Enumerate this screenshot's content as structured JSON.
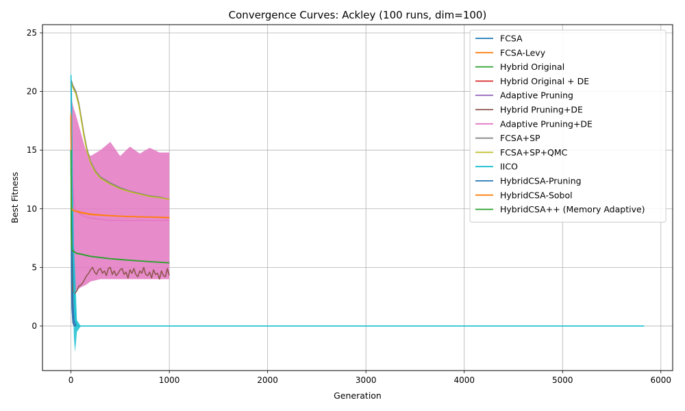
{
  "chart_data": {
    "type": "line",
    "title": "Convergence Curves: Ackley (100 runs, dim=100)",
    "xlabel": "Generation",
    "ylabel": "Best Fitness",
    "xlim": [
      -290,
      6120
    ],
    "ylim": [
      -3.8,
      25.7
    ],
    "xticks": [
      0,
      1000,
      2000,
      3000,
      4000,
      5000,
      6000
    ],
    "yticks": [
      0,
      5,
      10,
      15,
      20,
      25
    ],
    "grid": true,
    "legend_position": "top-right",
    "series": [
      {
        "name": "FCSA",
        "color": "#1f77b4",
        "x": [
          0,
          3,
          6,
          10,
          15,
          20,
          30,
          50
        ],
        "y": [
          21.0,
          18.0,
          14.0,
          9.0,
          5.0,
          2.0,
          0.5,
          0.0
        ],
        "band": []
      },
      {
        "name": "FCSA-Levy",
        "color": "#ff7f0e",
        "x": [
          0,
          2,
          5,
          10,
          20,
          40,
          60,
          100,
          200,
          300,
          400,
          500,
          600,
          700,
          800,
          900,
          1000
        ],
        "y": [
          18.3,
          12.0,
          10.3,
          10.0,
          9.9,
          9.85,
          9.8,
          9.7,
          9.55,
          9.48,
          9.42,
          9.38,
          9.35,
          9.32,
          9.3,
          9.28,
          9.25
        ],
        "band": []
      },
      {
        "name": "Hybrid Original",
        "color": "#2ca02c",
        "x": [
          0,
          2,
          5,
          10,
          20,
          40,
          60,
          100,
          150,
          200,
          300,
          400,
          500,
          600,
          700,
          800,
          900,
          1000
        ],
        "y": [
          15.0,
          9.0,
          7.0,
          6.6,
          6.45,
          6.3,
          6.2,
          6.15,
          6.05,
          5.95,
          5.85,
          5.75,
          5.68,
          5.62,
          5.56,
          5.5,
          5.45,
          5.4
        ],
        "band": []
      },
      {
        "name": "Hybrid Original + DE",
        "color": "#d62728",
        "x": [
          0,
          5,
          10,
          15,
          20,
          30,
          50
        ],
        "y": [
          18.0,
          8.0,
          3.0,
          1.0,
          0.3,
          0.05,
          0.0
        ],
        "band": []
      },
      {
        "name": "Adaptive Pruning",
        "color": "#9467bd",
        "x": [
          0,
          5,
          10,
          20,
          30,
          50
        ],
        "y": [
          17.0,
          6.0,
          2.0,
          0.5,
          0.1,
          0.0
        ],
        "band": []
      },
      {
        "name": "Hybrid Pruning+DE",
        "color": "#8c564b",
        "x": [
          0,
          5,
          10,
          20,
          40,
          60,
          80,
          100,
          120,
          140,
          160,
          180,
          200,
          220,
          240,
          260,
          280,
          300,
          320,
          340,
          360,
          380,
          400,
          420,
          440,
          460,
          480,
          500,
          520,
          540,
          560,
          580,
          600,
          620,
          640,
          660,
          680,
          700,
          720,
          740,
          760,
          780,
          800,
          820,
          840,
          860,
          880,
          900,
          920,
          940,
          960,
          980,
          1000
        ],
        "y": [
          18.0,
          8.0,
          4.0,
          3.0,
          2.8,
          3.0,
          3.4,
          3.5,
          3.7,
          4.0,
          4.3,
          4.5,
          4.8,
          5.0,
          4.6,
          4.4,
          4.8,
          4.9,
          4.5,
          4.7,
          4.3,
          4.9,
          5.0,
          4.4,
          4.7,
          4.3,
          4.5,
          4.8,
          4.9,
          4.4,
          4.6,
          4.1,
          4.8,
          4.5,
          4.9,
          4.4,
          4.2,
          4.7,
          4.5,
          5.0,
          4.4,
          4.3,
          4.6,
          4.1,
          4.8,
          4.4,
          4.5,
          4.0,
          4.7,
          4.3,
          4.2,
          4.9,
          4.3
        ],
        "band": []
      },
      {
        "name": "Adaptive Pruning+DE",
        "color": "#e377c2",
        "x": [
          0,
          10,
          20,
          30,
          50,
          100,
          150,
          200,
          300,
          400,
          500,
          600,
          700,
          800,
          900,
          1000
        ],
        "y": [
          18.0,
          14.0,
          12.0,
          10.5,
          9.8,
          9.5,
          9.3,
          9.2,
          9.1,
          9.0,
          9.0,
          9.0,
          9.0,
          9.0,
          9.0,
          9.0
        ],
        "band": [
          [
            17.5,
            19.5
          ],
          [
            3.0,
            19.2
          ],
          [
            2.8,
            18.8
          ],
          [
            3.0,
            18.5
          ],
          [
            3.0,
            18.0
          ],
          [
            3.3,
            16.5
          ],
          [
            3.5,
            15.0
          ],
          [
            3.8,
            14.5
          ],
          [
            4.0,
            15.0
          ],
          [
            4.0,
            15.7
          ],
          [
            4.0,
            14.5
          ],
          [
            4.0,
            15.3
          ],
          [
            4.0,
            14.7
          ],
          [
            4.0,
            15.2
          ],
          [
            4.0,
            14.8
          ],
          [
            4.0,
            14.8
          ]
        ]
      },
      {
        "name": "FCSA+SP",
        "color": "#7f7f7f",
        "x": [
          0,
          20,
          50,
          80,
          100,
          130,
          160,
          200,
          250,
          300,
          400,
          500,
          600,
          700,
          800,
          900,
          1000
        ],
        "y": [
          21.0,
          20.5,
          20.0,
          19.0,
          18.0,
          16.5,
          15.2,
          14.0,
          13.2,
          12.7,
          12.2,
          11.8,
          11.5,
          11.3,
          11.1,
          11.0,
          10.8
        ],
        "band": []
      },
      {
        "name": "FCSA+SP+QMC",
        "color": "#bcbd22",
        "x": [
          0,
          20,
          50,
          80,
          100,
          130,
          160,
          200,
          250,
          300,
          400,
          500,
          600,
          700,
          800,
          900,
          1000
        ],
        "y": [
          20.8,
          20.3,
          19.8,
          18.8,
          17.8,
          16.3,
          15.0,
          13.9,
          13.1,
          12.6,
          12.1,
          11.7,
          11.45,
          11.25,
          11.05,
          10.95,
          10.8
        ],
        "band": []
      },
      {
        "name": "IICO",
        "color": "#17becf",
        "x": [
          0,
          5,
          10,
          20,
          30,
          40,
          50,
          60,
          100,
          500,
          1000,
          2000,
          3000,
          4000,
          5000,
          5830
        ],
        "y": [
          21.4,
          19.0,
          14.0,
          7.0,
          3.0,
          1.5,
          0.6,
          0.0,
          0.0,
          0.0,
          0.0,
          0.0,
          0.0,
          0.0,
          0.0,
          0.0
        ],
        "band": [
          [
            21.0,
            21.8
          ],
          [
            16.0,
            21.0
          ],
          [
            8.0,
            20.0
          ],
          [
            2.0,
            12.0
          ],
          [
            -1.0,
            7.0
          ],
          [
            -2.2,
            5.0
          ],
          [
            -1.5,
            3.0
          ],
          [
            -0.5,
            0.5
          ],
          [
            0.0,
            0.0
          ],
          [
            0.0,
            0.0
          ],
          [
            0.0,
            0.0
          ],
          [
            0.0,
            0.0
          ],
          [
            0.0,
            0.0
          ],
          [
            0.0,
            0.0
          ],
          [
            0.0,
            0.0
          ],
          [
            0.0,
            0.0
          ]
        ]
      },
      {
        "name": "HybridCSA-Pruning",
        "color": "#1f77b4",
        "x": [
          0,
          5,
          10,
          20,
          30,
          50
        ],
        "y": [
          15.0,
          5.0,
          1.5,
          0.3,
          0.05,
          0.0
        ],
        "band": []
      },
      {
        "name": "HybridCSA-Sobol",
        "color": "#ff7f0e",
        "x": [
          0,
          2,
          5,
          10,
          20,
          40,
          60,
          100,
          200,
          300,
          400,
          500,
          600,
          700,
          800,
          900,
          1000
        ],
        "y": [
          18.0,
          11.5,
          10.2,
          9.95,
          9.85,
          9.8,
          9.75,
          9.65,
          9.5,
          9.45,
          9.4,
          9.36,
          9.33,
          9.3,
          9.28,
          9.26,
          9.22
        ],
        "band": []
      },
      {
        "name": "HybridCSA++ (Memory Adaptive)",
        "color": "#2ca02c",
        "x": [
          0,
          2,
          5,
          10,
          20,
          40,
          60,
          100,
          150,
          200,
          300,
          400,
          500,
          600,
          700,
          800,
          900,
          1000
        ],
        "y": [
          15.0,
          8.8,
          6.9,
          6.55,
          6.4,
          6.28,
          6.18,
          6.12,
          6.02,
          5.93,
          5.83,
          5.73,
          5.66,
          5.6,
          5.54,
          5.48,
          5.43,
          5.38
        ],
        "band": []
      }
    ]
  }
}
